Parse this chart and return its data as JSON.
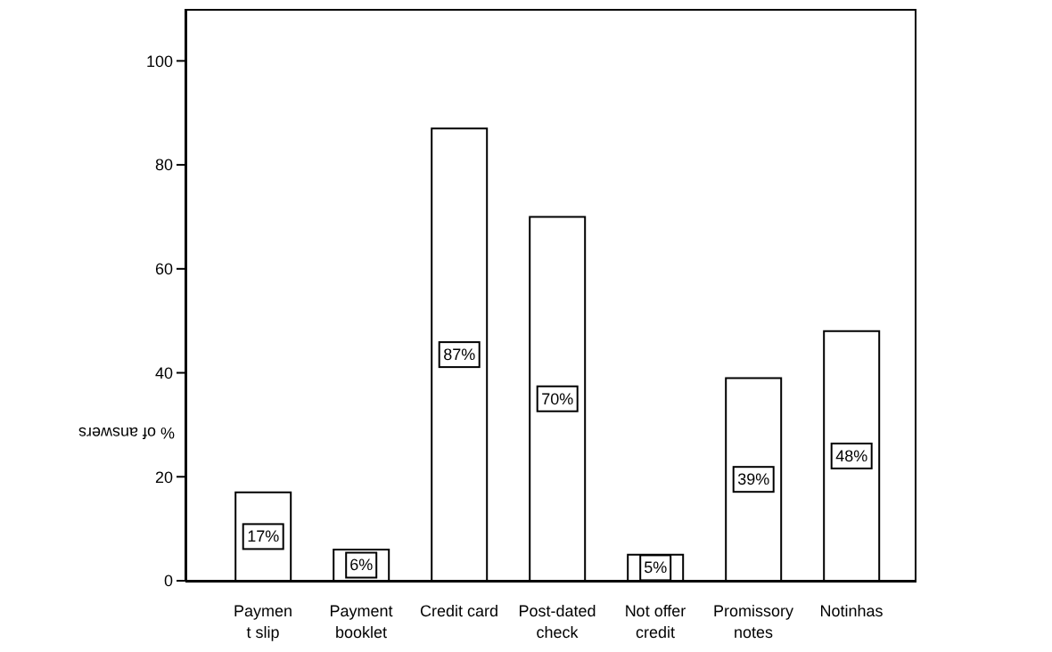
{
  "chart_data": {
    "type": "bar",
    "ylabel": "% of answers",
    "categories": [
      "Paymen\nt slip",
      "Payment\nbooklet",
      "Credit card",
      "Post-dated\ncheck",
      "Not offer\ncredit",
      "Promissory\nnotes",
      "Notinhas"
    ],
    "values": [
      17,
      6,
      87,
      70,
      5,
      39,
      48
    ],
    "value_labels": [
      "17%",
      "6%",
      "87%",
      "70%",
      "5%",
      "39%",
      "48%"
    ],
    "color": "#ffffff",
    "ylim": [
      0,
      110
    ],
    "yticks": [
      0,
      20,
      40,
      60,
      80,
      100
    ],
    "grid": false
  }
}
